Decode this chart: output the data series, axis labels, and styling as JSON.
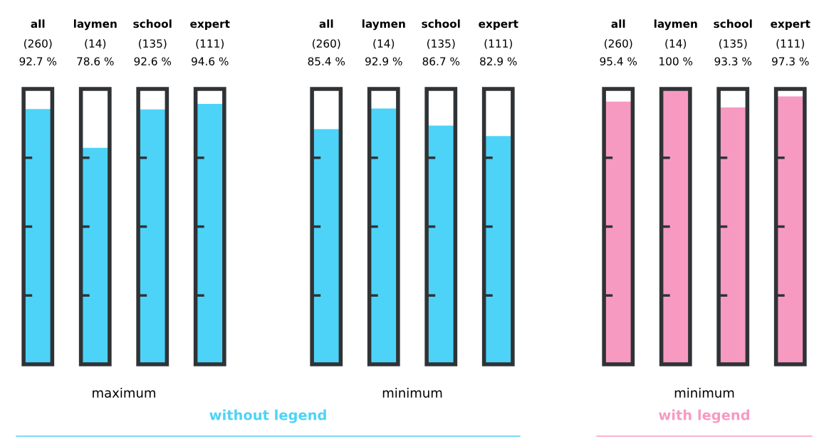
{
  "chart_data": [
    {
      "type": "bar",
      "xlabel": "maximum",
      "categories": [
        "all\n(260)",
        "laymen\n(14)",
        "school\n(135)",
        "expert\n(111)"
      ],
      "values": [
        92.7,
        78.6,
        92.6,
        94.6
      ],
      "value_labels": [
        "92.7 %",
        "78.6 %",
        "92.6 %",
        "94.6 %"
      ],
      "color": "#4dd3f8",
      "ylim": [
        0,
        100
      ],
      "tick_labels": "x",
      "annotations": [
        "without legend"
      ]
    },
    {
      "type": "bar",
      "xlabel": "minimum",
      "categories": [
        "all\n(260)",
        "laymen\n(14)",
        "school\n(135)",
        "expert\n(111)"
      ],
      "values": [
        85.4,
        92.9,
        86.7,
        82.9
      ],
      "value_labels": [
        "85.4 %",
        "92.9 %",
        "86.7 %",
        "82.9 %"
      ],
      "color": "#4dd3f8",
      "ylim": [
        0,
        100
      ],
      "tick_labels": "x"
    },
    {
      "type": "bar",
      "xlabel": "minimum",
      "categories": [
        "all\n(260)",
        "laymen\n(14)",
        "school\n(135)",
        "expert\n(111)"
      ],
      "values": [
        95.4,
        100,
        93.3,
        97.3
      ],
      "value_labels": [
        "95.4 %",
        "100 %",
        "93.3 %",
        "97.3 %"
      ],
      "color": "#f79ac2",
      "ylim": [
        0,
        100
      ],
      "tick_labels": "x",
      "annotations": [
        "with legend"
      ]
    }
  ]
}
